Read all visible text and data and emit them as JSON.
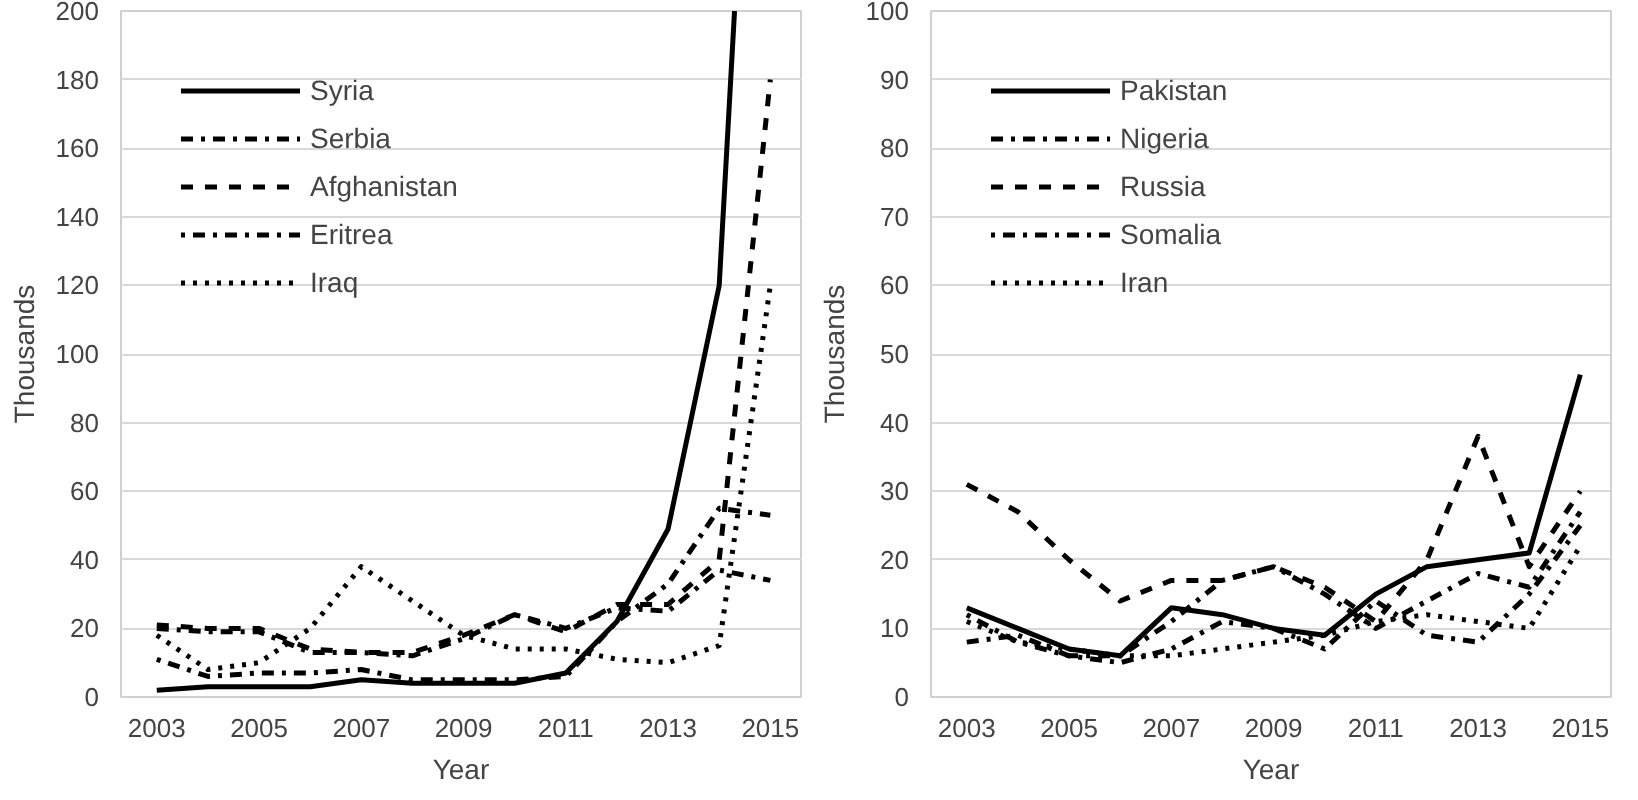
{
  "chart_data": [
    {
      "type": "line",
      "xlabel": "Year",
      "ylabel": "Thousands",
      "x": [
        2003,
        2004,
        2005,
        2006,
        2007,
        2008,
        2009,
        2010,
        2011,
        2012,
        2013,
        2014,
        2015
      ],
      "xlim": [
        2002.3,
        2015.6
      ],
      "xticks": [
        2003,
        2005,
        2007,
        2009,
        2011,
        2013,
        2015
      ],
      "ylim": [
        0,
        200
      ],
      "yticks": [
        0,
        20,
        40,
        60,
        80,
        100,
        120,
        140,
        160,
        180,
        200
      ],
      "grid": "y",
      "legend": "top left",
      "series": [
        {
          "name": "Syria",
          "color": "#000000",
          "line_style": "solid",
          "x": [
            2003,
            2004,
            2005,
            2006,
            2007,
            2008,
            2009,
            2010,
            2011,
            2012,
            2013,
            2014,
            2014.3
          ],
          "values": [
            2,
            3,
            3,
            3,
            5,
            4,
            4,
            4,
            7,
            22,
            49,
            120,
            200
          ]
        },
        {
          "name": "Serbia",
          "color": "#000000",
          "line_style": "dashdot",
          "values": [
            20,
            19,
            19,
            13,
            13,
            12,
            17,
            24,
            20,
            26,
            25,
            37,
            34
          ]
        },
        {
          "name": "Afghanistan",
          "color": "#000000",
          "line_style": "dashed",
          "values": [
            21,
            20,
            20,
            14,
            13,
            13,
            18,
            24,
            19,
            27,
            27,
            40,
            180
          ]
        },
        {
          "name": "Eritrea",
          "color": "#000000",
          "line_style": "dotdash",
          "values": [
            11,
            6,
            7,
            7,
            8,
            5,
            5,
            5,
            6,
            22,
            33,
            55,
            53
          ]
        },
        {
          "name": "Iraq",
          "color": "#000000",
          "line_style": "dotted",
          "values": [
            18,
            8,
            10,
            20,
            38,
            28,
            18,
            14,
            14,
            11,
            10,
            15,
            120
          ]
        }
      ]
    },
    {
      "type": "line",
      "xlabel": "Year",
      "ylabel": "Thousands",
      "x": [
        2003,
        2004,
        2005,
        2006,
        2007,
        2008,
        2009,
        2010,
        2011,
        2012,
        2013,
        2014,
        2015
      ],
      "xlim": [
        2002.3,
        2015.6
      ],
      "xticks": [
        2003,
        2005,
        2007,
        2009,
        2011,
        2013,
        2015
      ],
      "ylim": [
        0,
        100
      ],
      "yticks": [
        0,
        10,
        20,
        30,
        40,
        50,
        60,
        70,
        80,
        90,
        100
      ],
      "grid": "y",
      "legend": "top left",
      "series": [
        {
          "name": "Pakistan",
          "color": "#000000",
          "line_style": "solid",
          "values": [
            13,
            10,
            7,
            6,
            13,
            12,
            10,
            9,
            15,
            19,
            20,
            21,
            47
          ]
        },
        {
          "name": "Nigeria",
          "color": "#000000",
          "line_style": "dashdot",
          "values": [
            8,
            9,
            6,
            5,
            7,
            11,
            10,
            7,
            14,
            9,
            8,
            15,
            25
          ]
        },
        {
          "name": "Russia",
          "color": "#000000",
          "line_style": "dashed",
          "values": [
            31,
            27,
            20,
            14,
            17,
            17,
            19,
            16,
            11,
            20,
            38,
            19,
            30
          ]
        },
        {
          "name": "Somalia",
          "color": "#000000",
          "line_style": "dotdash",
          "values": [
            12,
            8,
            6,
            6,
            11,
            17,
            19,
            15,
            10,
            14,
            18,
            16,
            27
          ]
        },
        {
          "name": "Iran",
          "color": "#000000",
          "line_style": "dotted",
          "values": [
            11,
            8,
            7,
            6,
            6,
            7,
            8,
            9,
            11,
            12,
            11,
            10,
            22
          ]
        }
      ]
    }
  ]
}
